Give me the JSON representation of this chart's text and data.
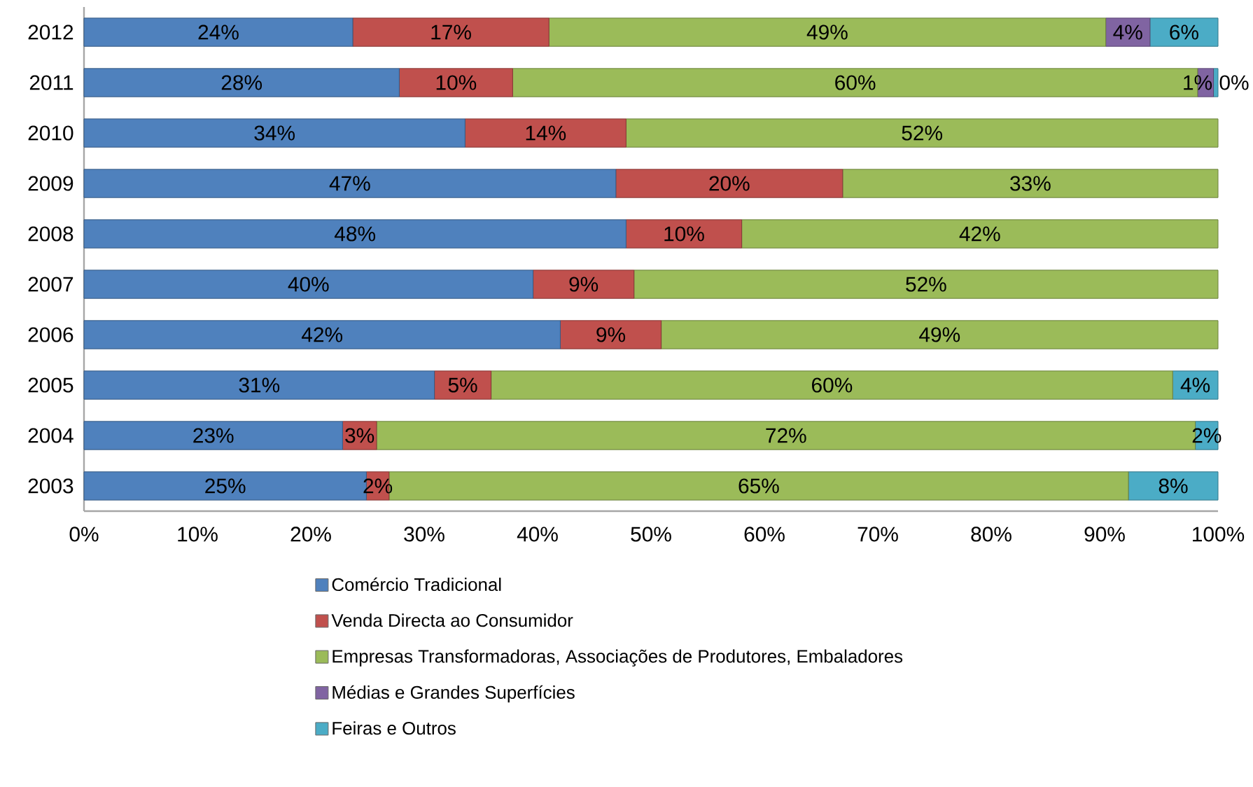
{
  "chart_data": {
    "type": "bar",
    "orientation": "horizontal",
    "stacked": true,
    "categories": [
      "2012",
      "2011",
      "2010",
      "2009",
      "2008",
      "2007",
      "2006",
      "2005",
      "2004",
      "2003"
    ],
    "series": [
      {
        "name": "Comércio Tradicional",
        "color": "#4f81bd",
        "values": [
          23.7,
          27.8,
          33.6,
          46.9,
          47.8,
          39.6,
          42.0,
          30.9,
          22.8,
          24.9
        ],
        "value_labels": [
          "24%",
          "28%",
          "34%",
          "47%",
          "48%",
          "40%",
          "42%",
          "31%",
          "23%",
          "25%"
        ]
      },
      {
        "name": "Venda Directa ao Consumidor",
        "color": "#c0504d",
        "values": [
          17.3,
          10.0,
          14.2,
          20.0,
          10.2,
          8.9,
          8.9,
          5.0,
          3.0,
          2.0
        ],
        "value_labels": [
          "17%",
          "10%",
          "14%",
          "20%",
          "10%",
          "9%",
          "9%",
          "5%",
          "3%",
          "2%"
        ]
      },
      {
        "name": "Empresas Transformadoras, Associações de Produtores, Embaladores",
        "color": "#9bbb59",
        "values": [
          49.1,
          60.4,
          52.2,
          33.1,
          42.0,
          51.5,
          49.1,
          60.1,
          72.2,
          65.2
        ],
        "value_labels": [
          "49%",
          "60%",
          "52%",
          "33%",
          "42%",
          "52%",
          "49%",
          "60%",
          "72%",
          "65%"
        ]
      },
      {
        "name": "Médias e Grandes Superfícies",
        "color": "#8064a2",
        "values": [
          3.9,
          1.4,
          0,
          0,
          0,
          0,
          0,
          0,
          0,
          0
        ],
        "value_labels": [
          "4%",
          "1%",
          null,
          null,
          null,
          null,
          null,
          null,
          null,
          null
        ]
      },
      {
        "name": "Feiras e Outros",
        "color": "#4bacc6",
        "values": [
          6.0,
          0.4,
          0,
          0,
          0,
          0,
          0,
          4.0,
          2.0,
          7.9
        ],
        "value_labels": [
          "6%",
          "0%",
          null,
          null,
          null,
          null,
          null,
          "4%",
          "2%",
          "8%"
        ]
      }
    ],
    "xlim": [
      0,
      100
    ],
    "xticks": [
      {
        "value": 0,
        "label": "0%"
      },
      {
        "value": 10,
        "label": "10%"
      },
      {
        "value": 20,
        "label": "20%"
      },
      {
        "value": 30,
        "label": "30%"
      },
      {
        "value": 40,
        "label": "40%"
      },
      {
        "value": 50,
        "label": "50%"
      },
      {
        "value": 60,
        "label": "60%"
      },
      {
        "value": 70,
        "label": "70%"
      },
      {
        "value": 80,
        "label": "80%"
      },
      {
        "value": 90,
        "label": "90%"
      },
      {
        "value": 100,
        "label": "100%"
      }
    ],
    "legend": "bottom"
  }
}
